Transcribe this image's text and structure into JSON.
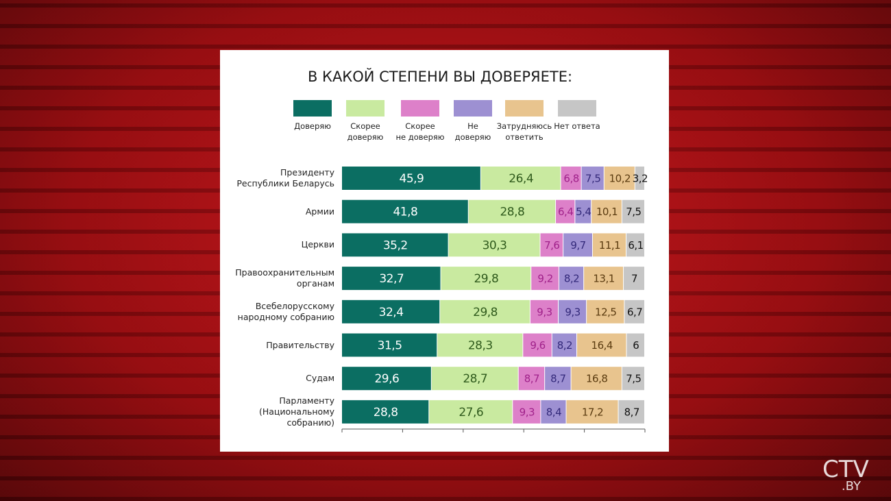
{
  "chart_data": {
    "type": "stacked-bar-horizontal",
    "title": "В КАКОЙ СТЕПЕНИ ВЫ ДОВЕРЯЕТЕ:",
    "categories": [
      "Президенту\nРеспублики Беларусь",
      "Армии",
      "Церкви",
      "Правоохранительным\nорганам",
      "Всебелорусскому\nнародному собранию",
      "Правительству",
      "Судам",
      "Парламенту\n(Национальному\nсобранию)"
    ],
    "xlim": [
      0,
      100
    ],
    "xticks": [
      0,
      20,
      40,
      60,
      80,
      100
    ],
    "series": [
      {
        "name": "Доверяю",
        "color": "#0b6e62",
        "label_color": "#ffffff",
        "values": [
          45.9,
          41.8,
          35.2,
          32.7,
          32.4,
          31.5,
          29.6,
          28.8
        ],
        "value_labels": [
          "45,9",
          "41,8",
          "35,2",
          "32,7",
          "32,4",
          "31,5",
          "29,6",
          "28,8"
        ]
      },
      {
        "name": "Скорее\nдоверяю",
        "color": "#c9eaa0",
        "label_color": "#2f5a1c",
        "values": [
          26.4,
          28.8,
          30.3,
          29.8,
          29.8,
          28.3,
          28.7,
          27.6
        ],
        "value_labels": [
          "26,4",
          "28,8",
          "30,3",
          "29,8",
          "29,8",
          "28,3",
          "28,7",
          "27,6"
        ]
      },
      {
        "name": "Скорее\nне доверяю",
        "color": "#dd80c9",
        "label_color": "#a0218a",
        "values": [
          6.8,
          6.4,
          7.6,
          9.2,
          9.3,
          9.6,
          8.7,
          9.3
        ],
        "value_labels": [
          "6,8",
          "6,4",
          "7,6",
          "9,2",
          "9,3",
          "9,6",
          "8,7",
          "9,3"
        ]
      },
      {
        "name": "Не\nдоверяю",
        "color": "#9d90d2",
        "label_color": "#33297a",
        "values": [
          7.5,
          5.4,
          9.7,
          8.2,
          9.3,
          8.2,
          8.7,
          8.4
        ],
        "value_labels": [
          "7,5",
          "5,4",
          "9,7",
          "8,2",
          "9,3",
          "8,2",
          "8,7",
          "8,4"
        ]
      },
      {
        "name": "Затрудняюсь\nответить",
        "color": "#e8c48e",
        "label_color": "#5a3b10",
        "values": [
          10.2,
          10.1,
          11.1,
          13.1,
          12.5,
          16.4,
          16.8,
          17.2
        ],
        "value_labels": [
          "10,2",
          "10,1",
          "11,1",
          "13,1",
          "12,5",
          "16,4",
          "16,8",
          "17,2"
        ]
      },
      {
        "name": "Нет ответа",
        "color": "#c6c6c6",
        "label_color": "#111111",
        "values": [
          3.2,
          7.5,
          6.1,
          7,
          6.7,
          6,
          7.5,
          8.7
        ],
        "value_labels": [
          "3,2",
          "7,5",
          "6,1",
          "7",
          "6,7",
          "6",
          "7,5",
          "8,7"
        ]
      }
    ]
  },
  "logo": {
    "main": "CTV",
    "domain": ".BY"
  }
}
